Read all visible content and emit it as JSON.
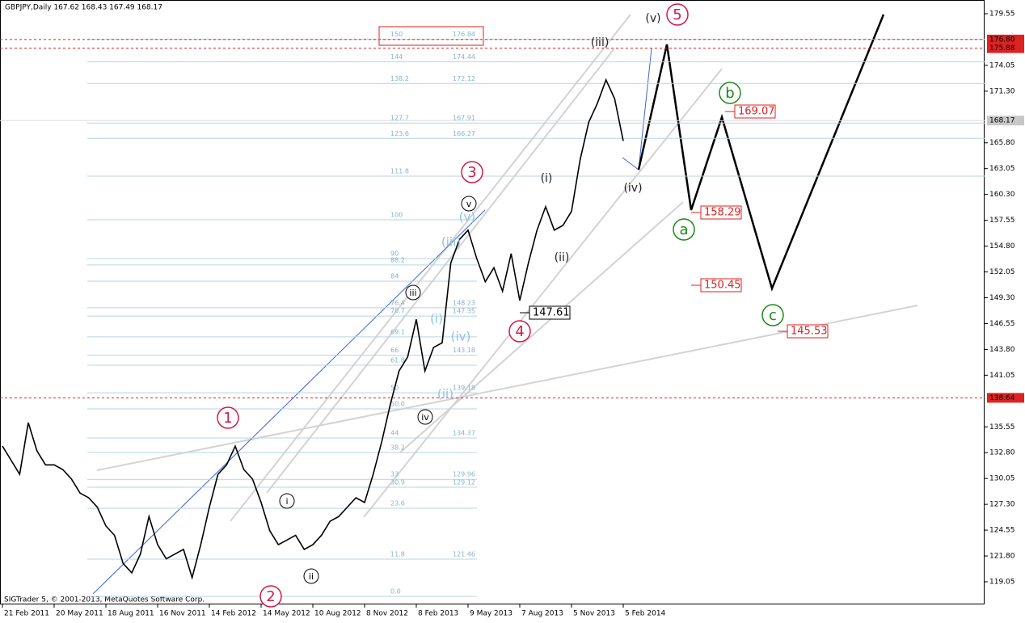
{
  "chart_data": {
    "type": "line",
    "title": "GBPJPY,Daily  167.62 168.43 167.49 168.17",
    "footer": "SIGTrader 5, © 2001-2013, MetaQuotes Software Corp.",
    "color": "#000000",
    "ylim": [
      116.64,
      181.01
    ],
    "yticks": [
      119.05,
      {
        "value": 121.8,
        "label": "121.80"
      },
      124.55,
      {
        "value": 127.3,
        "label": "127.30"
      },
      130.05,
      {
        "value": 132.8,
        "label": "132.80"
      },
      135.55,
      141.05,
      {
        "value": 143.8,
        "label": "143.80"
      },
      146.55,
      {
        "value": 149.3,
        "label": "149.30"
      },
      152.05,
      {
        "value": 154.8,
        "label": "154.80"
      },
      157.55,
      {
        "value": 160.3,
        "label": "160.30"
      },
      163.05,
      {
        "value": 165.8,
        "label": "165.80"
      },
      {
        "value": 171.3,
        "label": "171.30"
      },
      174.05,
      179.55
    ],
    "categories": [
      "21 Feb 2011",
      null,
      null,
      null,
      null,
      null,
      "20 May 2011",
      null,
      null,
      null,
      null,
      null,
      "18 Aug 2011",
      null,
      null,
      null,
      null,
      null,
      "16 Nov 2011",
      null,
      null,
      null,
      null,
      null,
      "14 Feb 2012",
      null,
      null,
      null,
      null,
      null,
      "14 May 2012",
      null,
      null,
      null,
      null,
      null,
      "10 Aug 2012",
      null,
      null,
      null,
      null,
      null,
      "8 Nov 2012",
      null,
      null,
      null,
      null,
      null,
      "8 Feb 2013",
      null,
      null,
      null,
      null,
      null,
      "9 May 2013",
      null,
      null,
      null,
      null,
      null,
      "7 Aug 2013",
      null,
      null,
      null,
      null,
      null,
      "5 Nov 2013",
      null,
      null,
      null,
      null,
      null,
      "5 Feb 2014"
    ],
    "values": [
      133.5,
      132,
      130.5,
      136,
      133,
      131.5,
      131.5,
      131,
      130,
      128.5,
      128,
      127,
      125,
      124,
      121,
      120,
      122,
      126,
      123,
      121.5,
      122,
      122.5,
      119.5,
      123,
      127,
      130.5,
      131.5,
      133.5,
      131,
      130,
      127.5,
      124.5,
      123,
      123.5,
      124,
      122.5,
      123,
      124,
      125.5,
      126,
      127,
      128,
      127.5,
      130.5,
      134,
      138,
      141.5,
      143,
      147,
      141.5,
      144,
      144.5,
      153,
      155.5,
      156.5,
      153.5,
      151,
      152.5,
      150,
      154,
      149,
      153,
      156.5,
      159,
      156.5,
      157,
      158.5,
      164,
      168,
      170,
      172.5,
      170.5,
      166
    ],
    "level_lines": [
      {
        "value": 176.8,
        "label": "176.80"
      },
      {
        "value": 175.88,
        "label": "175.88"
      },
      {
        "value": 138.64,
        "label": "138.64"
      }
    ],
    "current_price": 168.17,
    "fib_levels": [
      {
        "ratio": "150",
        "value": 176.84
      },
      {
        "ratio": "144",
        "value": 174.44
      },
      {
        "ratio": "138.2",
        "value": 172.12
      },
      {
        "ratio": "127.7",
        "value": 167.91
      },
      {
        "ratio": "123.6",
        "value": 166.27
      },
      {
        "ratio": "76.4",
        "value": 148.23
      },
      {
        "ratio": "70.7",
        "value": 147.35
      },
      {
        "ratio": "66",
        "value": 143.18
      },
      {
        "ratio": "50",
        "value": 139.18
      },
      {
        "ratio": "44",
        "value": 134.37
      },
      {
        "ratio": "33",
        "value": 129.96
      },
      {
        "ratio": "30.9",
        "value": 129.12
      },
      {
        "ratio": "11.8",
        "value": 121.46
      }
    ],
    "fib_ratio_only": [
      {
        "ratio": "111.8",
        "value": 162.25
      },
      {
        "ratio": "100",
        "value": 157.6
      },
      {
        "ratio": "90",
        "value": 153.47
      },
      {
        "ratio": "88.2",
        "value": 152.79
      },
      {
        "ratio": "84",
        "value": 151.06
      },
      {
        "ratio": "69.1",
        "value": 145.13
      },
      {
        "ratio": "61.8",
        "value": 142.11
      },
      {
        "ratio": "50.0",
        "value": 137.47
      },
      {
        "ratio": "38.2",
        "value": 132.82
      },
      {
        "ratio": "23.6",
        "value": 126.88
      },
      {
        "ratio": "0.0",
        "value": 117.5
      }
    ],
    "price_labels": [
      169.07,
      158.29,
      150.45,
      145.53,
      147.61
    ],
    "annotations": [
      {
        "text": "1"
      },
      {
        "text": "2"
      },
      {
        "text": "3"
      },
      {
        "text": "4"
      },
      {
        "text": "5"
      },
      {
        "text": "(v)"
      },
      {
        "text": "(iii)"
      },
      {
        "text": "(iv)"
      },
      {
        "text": "(i)"
      },
      {
        "text": "(ii)"
      },
      {
        "text": "i"
      },
      {
        "text": "ii"
      },
      {
        "text": "iii"
      },
      {
        "text": "iv"
      },
      {
        "text": "v"
      },
      {
        "text": "a"
      },
      {
        "text": "b"
      },
      {
        "text": "c"
      },
      {
        "text": "(iii)"
      },
      {
        "text": "(i)"
      },
      {
        "text": "(iv)"
      },
      {
        "text": "(ii)"
      },
      {
        "text": "(v)"
      }
    ]
  }
}
